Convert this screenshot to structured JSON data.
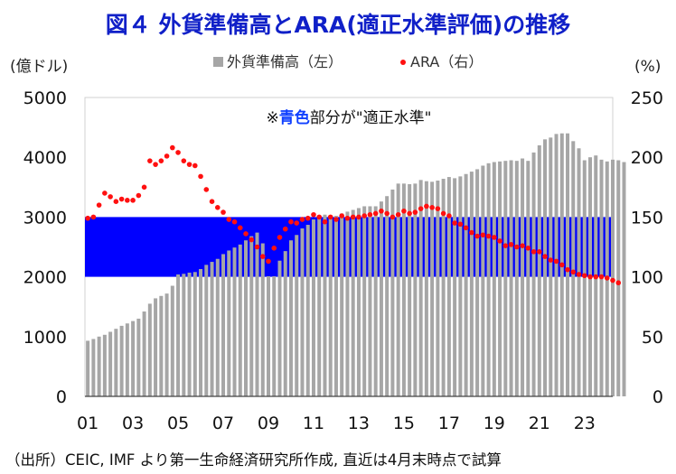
{
  "chart_data": {
    "type": "bar+line",
    "title": "図４ 外貨準備高とARA(適正水準評価)の推移",
    "y_left_unit": "(億ドル)",
    "y_right_unit": "(%)",
    "y_left_range": [
      0,
      5000
    ],
    "y_left_ticks": [
      "0",
      "1000",
      "2000",
      "3000",
      "4000",
      "5000"
    ],
    "y_right_range": [
      0,
      250
    ],
    "y_right_ticks": [
      "0",
      "50",
      "100",
      "150",
      "200",
      "250"
    ],
    "x_tick_labels": [
      "01",
      "03",
      "05",
      "07",
      "09",
      "11",
      "13",
      "15",
      "17",
      "19",
      "21",
      "23"
    ],
    "x_range": [
      2000.875,
      2024.25
    ],
    "grid": false,
    "legend_position": "top-center",
    "series": [
      {
        "name": "外貨準備高（左）",
        "type": "bar",
        "axis": "left",
        "color": "#a6a6a6",
        "x_start": 2001.0,
        "x_step": 0.25,
        "values": [
          930,
          960,
          1000,
          1030,
          1080,
          1130,
          1180,
          1220,
          1260,
          1300,
          1420,
          1550,
          1640,
          1680,
          1720,
          1850,
          2040,
          2050,
          2070,
          2080,
          2130,
          2200,
          2250,
          2300,
          2380,
          2440,
          2490,
          2540,
          2610,
          2680,
          2740,
          2560,
          2010,
          2010,
          2270,
          2430,
          2610,
          2700,
          2810,
          2870,
          2960,
          3020,
          3040,
          3000,
          3020,
          3060,
          3090,
          3120,
          3150,
          3180,
          3180,
          3180,
          3260,
          3350,
          3460,
          3560,
          3560,
          3550,
          3560,
          3620,
          3600,
          3590,
          3610,
          3640,
          3670,
          3650,
          3680,
          3720,
          3760,
          3800,
          3860,
          3900,
          3920,
          3930,
          3940,
          3950,
          3940,
          3980,
          3940,
          4080,
          4200,
          4300,
          4330,
          4390,
          4400,
          4400,
          4270,
          4150,
          3950,
          4000,
          4030,
          3960,
          3930,
          3960,
          3950,
          3920
        ]
      },
      {
        "name": "ARA（右）",
        "type": "scatter",
        "axis": "right",
        "color": "#ff1010",
        "points": [
          [
            2001.0,
            149
          ],
          [
            2001.25,
            150
          ],
          [
            2001.5,
            160
          ],
          [
            2001.75,
            170
          ],
          [
            2002.0,
            167
          ],
          [
            2002.25,
            163
          ],
          [
            2002.5,
            165
          ],
          [
            2002.75,
            164
          ],
          [
            2003.0,
            164
          ],
          [
            2003.25,
            168
          ],
          [
            2003.5,
            175
          ],
          [
            2003.75,
            197
          ],
          [
            2004.0,
            194
          ],
          [
            2004.25,
            197
          ],
          [
            2004.5,
            201
          ],
          [
            2004.75,
            208
          ],
          [
            2005.0,
            204
          ],
          [
            2005.25,
            197
          ],
          [
            2005.5,
            194
          ],
          [
            2005.75,
            193
          ],
          [
            2006.0,
            184
          ],
          [
            2006.25,
            173
          ],
          [
            2006.5,
            163
          ],
          [
            2006.75,
            158
          ],
          [
            2007.0,
            154
          ],
          [
            2007.25,
            148
          ],
          [
            2007.5,
            146
          ],
          [
            2007.75,
            141
          ],
          [
            2008.0,
            136
          ],
          [
            2008.25,
            131
          ],
          [
            2008.5,
            125
          ],
          [
            2008.75,
            117
          ],
          [
            2009.0,
            113
          ],
          [
            2009.25,
            124
          ],
          [
            2009.5,
            133
          ],
          [
            2009.75,
            140
          ],
          [
            2010.0,
            146
          ],
          [
            2010.25,
            145
          ],
          [
            2010.5,
            148
          ],
          [
            2010.75,
            149
          ],
          [
            2011.0,
            152
          ],
          [
            2011.25,
            150
          ],
          [
            2011.5,
            146
          ],
          [
            2011.75,
            150
          ],
          [
            2012.0,
            148
          ],
          [
            2012.25,
            151
          ],
          [
            2012.5,
            149
          ],
          [
            2012.75,
            150
          ],
          [
            2013.0,
            150
          ],
          [
            2013.25,
            151
          ],
          [
            2013.5,
            152
          ],
          [
            2013.75,
            153
          ],
          [
            2014.0,
            155
          ],
          [
            2014.25,
            153
          ],
          [
            2014.5,
            150
          ],
          [
            2014.75,
            152
          ],
          [
            2015.0,
            155
          ],
          [
            2015.25,
            153
          ],
          [
            2015.5,
            154
          ],
          [
            2015.75,
            157
          ],
          [
            2016.0,
            159
          ],
          [
            2016.25,
            158
          ],
          [
            2016.5,
            157
          ],
          [
            2016.75,
            153
          ],
          [
            2017.0,
            151
          ],
          [
            2017.25,
            145
          ],
          [
            2017.5,
            144
          ],
          [
            2017.75,
            141
          ],
          [
            2018.0,
            137
          ],
          [
            2018.25,
            134
          ],
          [
            2018.5,
            135
          ],
          [
            2018.75,
            134
          ],
          [
            2019.0,
            133
          ],
          [
            2019.25,
            130
          ],
          [
            2019.5,
            126
          ],
          [
            2019.75,
            127
          ],
          [
            2020.0,
            125
          ],
          [
            2020.25,
            126
          ],
          [
            2020.5,
            124
          ],
          [
            2020.75,
            121
          ],
          [
            2021.0,
            121
          ],
          [
            2021.25,
            117
          ],
          [
            2021.5,
            114
          ],
          [
            2021.75,
            113
          ],
          [
            2022.0,
            110
          ],
          [
            2022.25,
            106
          ],
          [
            2022.5,
            104
          ],
          [
            2022.75,
            102
          ],
          [
            2023.0,
            101
          ],
          [
            2023.25,
            100
          ],
          [
            2023.5,
            100
          ],
          [
            2023.75,
            100
          ],
          [
            2024.0,
            99
          ],
          [
            2024.25,
            97
          ],
          [
            2024.5,
            95
          ]
        ]
      }
    ],
    "band": {
      "axis": "right",
      "from": 100,
      "to": 150,
      "color": "#0000ff",
      "label_mark": "※",
      "label_highlight": "青色",
      "label_rest": "部分が\"適正水準\""
    },
    "source": "（出所）CEIC, IMF より第一生命経済研究所作成, 直近は4月末時点で試算"
  }
}
